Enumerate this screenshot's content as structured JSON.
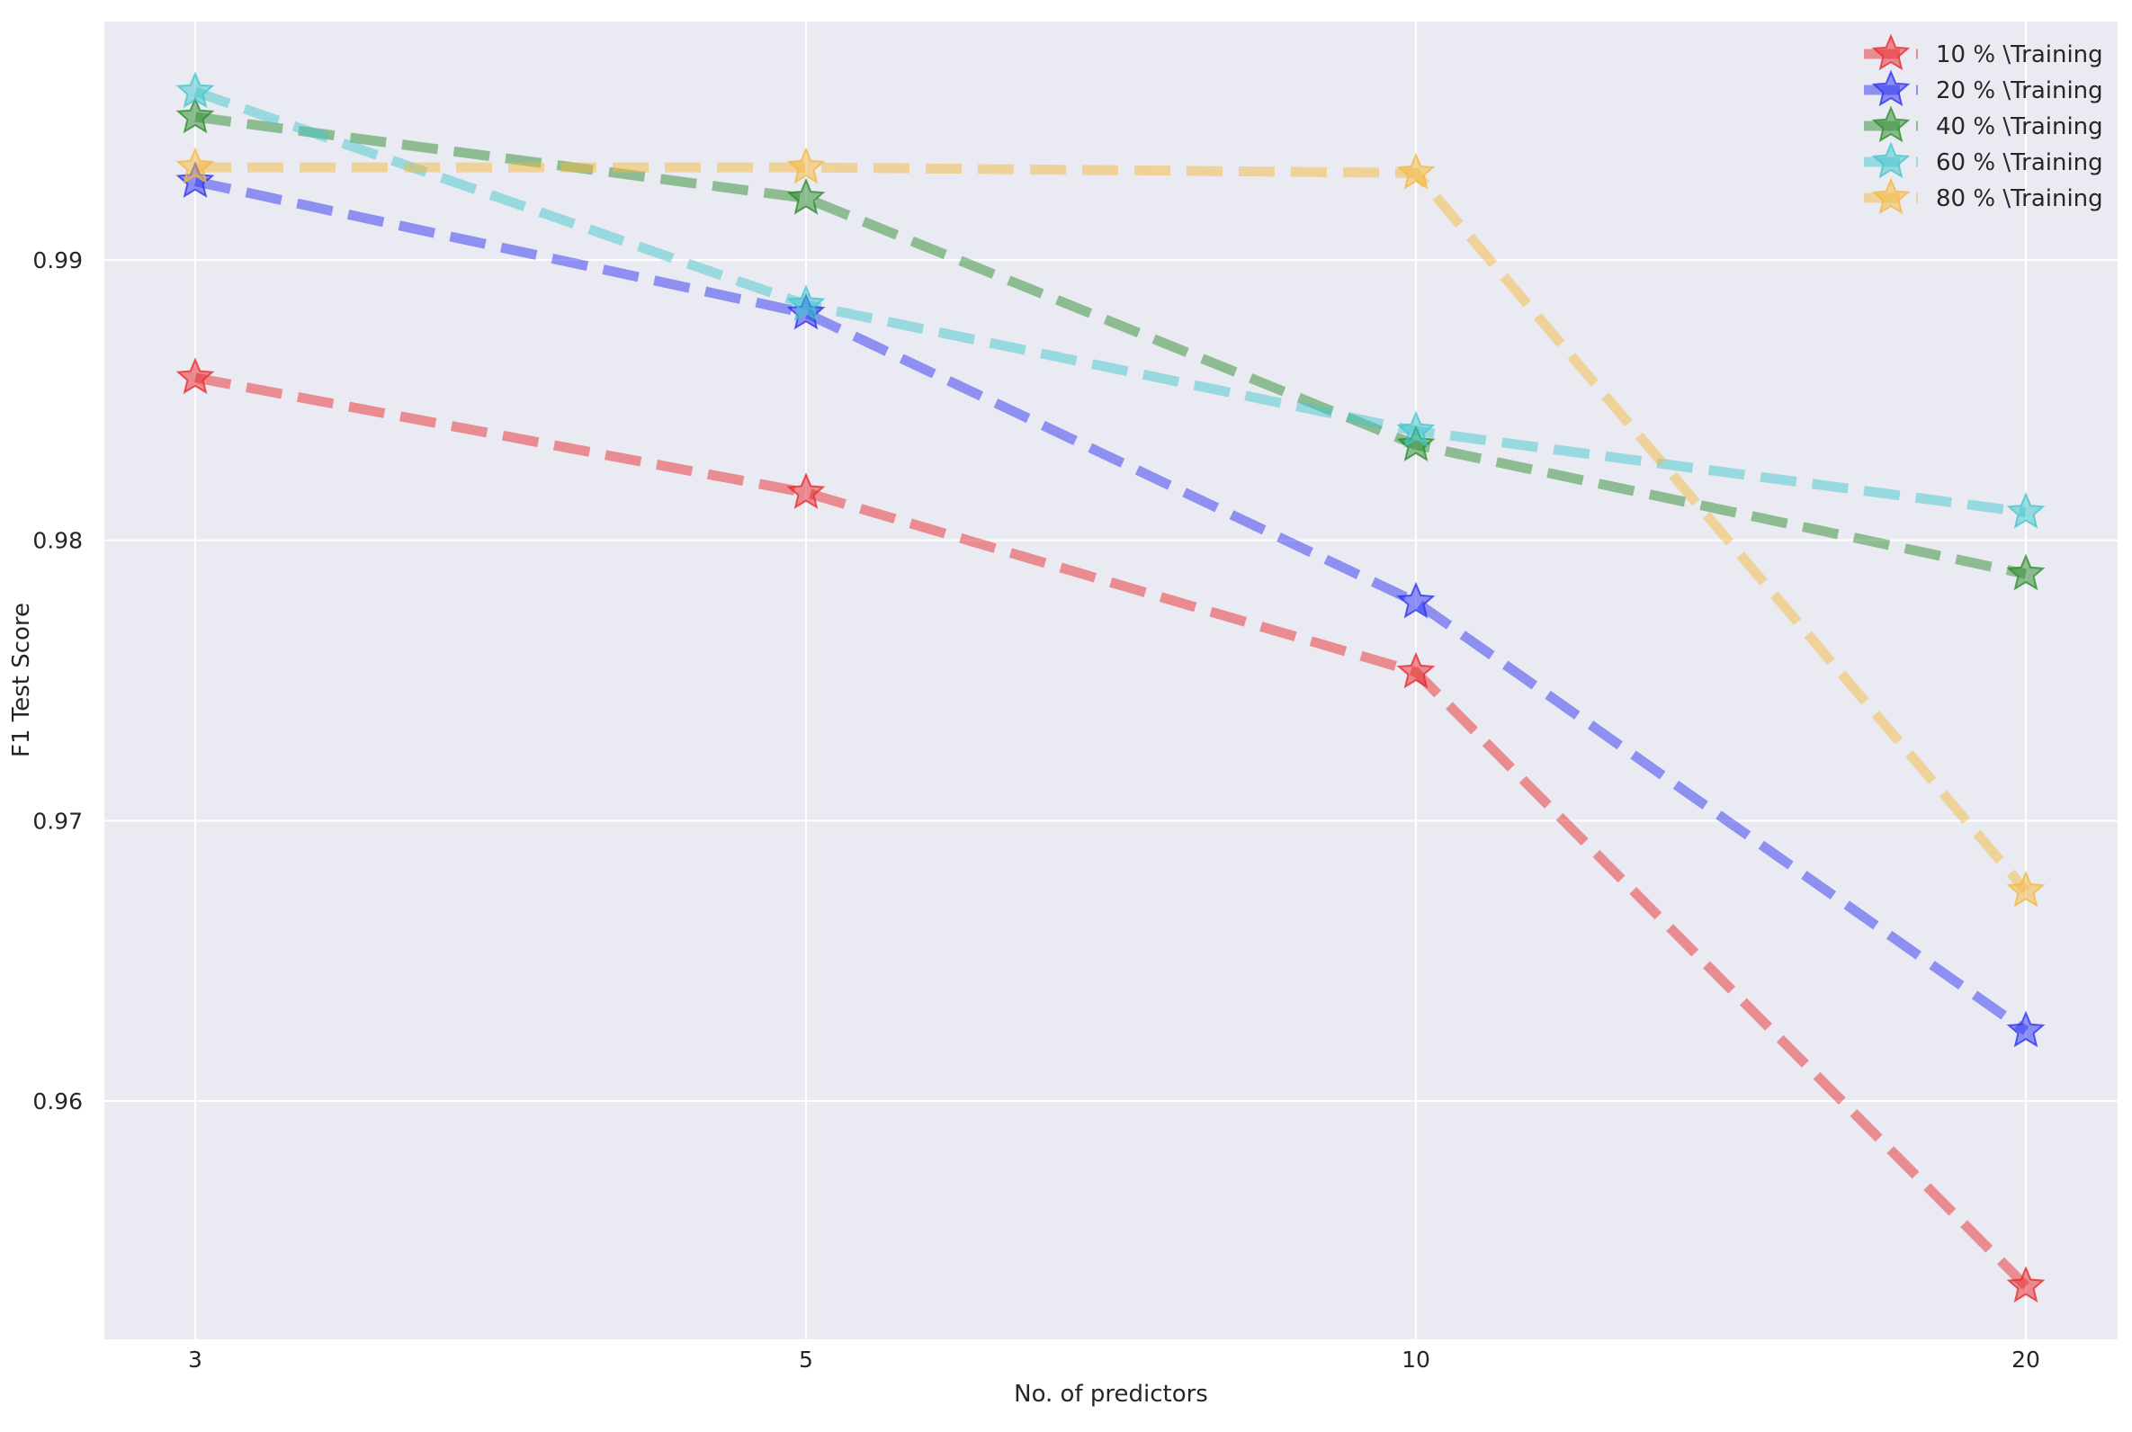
{
  "chart_data": {
    "type": "line",
    "title": "",
    "xlabel": "No. of predictors",
    "ylabel": "F1 Test Score",
    "x": [
      "3",
      "5",
      "10",
      "20"
    ],
    "ylim": [
      0.9515,
      0.9985
    ],
    "yticks": [
      "0.96",
      "0.97",
      "0.98",
      "0.99"
    ],
    "grid": true,
    "legend_position": "top-right",
    "marker": "star",
    "line_style": "dashed",
    "series": [
      {
        "name": "10 % \\Training",
        "color": "#e8262a",
        "values": [
          0.9858,
          0.9817,
          0.9753,
          0.9534
        ]
      },
      {
        "name": "20 % \\Training",
        "color": "#2a2ff0",
        "values": [
          0.9928,
          0.9881,
          0.9778,
          0.9625
        ]
      },
      {
        "name": "40 % \\Training",
        "color": "#2a8a2a",
        "values": [
          0.9951,
          0.9922,
          0.9834,
          0.9788
        ]
      },
      {
        "name": "60 % \\Training",
        "color": "#3fc6cc",
        "values": [
          0.996,
          0.9884,
          0.9839,
          0.981
        ]
      },
      {
        "name": "80 % \\Training",
        "color": "#f5b73b",
        "values": [
          0.9933,
          0.9933,
          0.9931,
          0.9675
        ]
      }
    ]
  }
}
